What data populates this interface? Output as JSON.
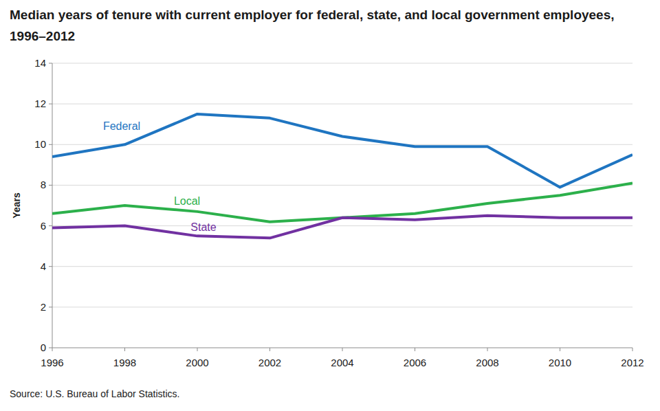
{
  "chart_data": {
    "type": "line",
    "title": "Median years of tenure with current employer for federal, state, and local government employees, 1996–2012",
    "y_label": "Years",
    "source": "Source: U.S. Bureau of Labor Statistics.",
    "x": [
      1996,
      1998,
      2000,
      2002,
      2004,
      2006,
      2008,
      2010,
      2012
    ],
    "series": [
      {
        "name": "Federal",
        "color": "#1f75c1",
        "values": [
          9.4,
          10.0,
          11.5,
          11.3,
          10.4,
          9.9,
          9.9,
          7.9,
          9.5
        ]
      },
      {
        "name": "Local",
        "color": "#2cb04b",
        "values": [
          6.6,
          7.0,
          6.7,
          6.2,
          6.4,
          6.6,
          7.1,
          7.5,
          8.1
        ]
      },
      {
        "name": "State",
        "color": "#7131a1",
        "values": [
          5.9,
          6.0,
          5.5,
          5.4,
          6.4,
          6.3,
          6.5,
          6.4,
          6.4
        ]
      }
    ],
    "xlim": [
      1996,
      2012
    ],
    "xticks": [
      1996,
      1998,
      2000,
      2002,
      2004,
      2006,
      2008,
      2010,
      2012
    ],
    "ylim": [
      0,
      14
    ],
    "yticks": [
      0,
      2,
      4,
      6,
      8,
      10,
      12,
      14
    ],
    "grid": true
  }
}
